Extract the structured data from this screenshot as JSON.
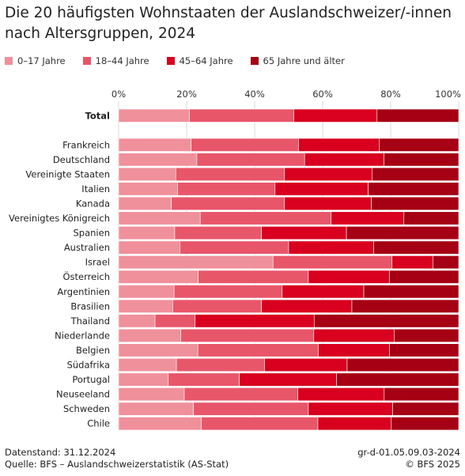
{
  "chart_data": {
    "type": "bar",
    "orientation": "horizontal",
    "stacked": "percent",
    "title": "Die 20 häufigsten Wohnstaaten der Auslandschweizer/-innen nach Altersgruppen, 2024",
    "xlim": [
      0,
      100
    ],
    "xticks": [
      "0%",
      "20%",
      "40%",
      "60%",
      "80%",
      "100%"
    ],
    "xtick_values": [
      0,
      20,
      40,
      60,
      80,
      100
    ],
    "grid": true,
    "legend_position": "top",
    "categories": [
      "Total",
      "Frankreich",
      "Deutschland",
      "Vereinigte Staaten",
      "Italien",
      "Kanada",
      "Vereinigtes Königreich",
      "Spanien",
      "Australien",
      "Israel",
      "Österreich",
      "Argentinien",
      "Brasilien",
      "Thailand",
      "Niederlande",
      "Belgien",
      "Südafrika",
      "Portugal",
      "Neuseeland",
      "Schweden",
      "Chile"
    ],
    "series": [
      {
        "name": "0–17 Jahre",
        "color": "#f0909b",
        "values": [
          20.8,
          21.3,
          23.0,
          16.8,
          17.3,
          15.5,
          24.0,
          16.5,
          18.0,
          45.4,
          23.4,
          16.3,
          15.9,
          10.7,
          18.3,
          23.3,
          17.0,
          14.6,
          19.3,
          22.0,
          24.3
        ]
      },
      {
        "name": "18–44 Jahre",
        "color": "#e8566a",
        "values": [
          30.7,
          31.6,
          31.7,
          32.0,
          28.7,
          33.3,
          38.5,
          25.5,
          32.0,
          35.0,
          32.4,
          31.8,
          26.1,
          11.8,
          39.1,
          35.4,
          25.9,
          20.9,
          33.4,
          33.8,
          34.3
        ]
      },
      {
        "name": "45–64 Jahre",
        "color": "#d8001e",
        "values": [
          24.5,
          23.8,
          23.3,
          25.8,
          27.4,
          25.5,
          21.4,
          25.0,
          25.0,
          12.0,
          23.8,
          24.0,
          26.6,
          35.0,
          23.6,
          21.0,
          24.3,
          28.6,
          25.4,
          24.8,
          21.6
        ]
      },
      {
        "name": "65 Jahre und älter",
        "color": "#a50014",
        "values": [
          24.0,
          23.3,
          22.0,
          25.4,
          26.6,
          25.7,
          16.1,
          33.0,
          25.0,
          7.6,
          20.4,
          27.9,
          31.4,
          42.5,
          19.0,
          20.3,
          32.8,
          35.9,
          21.9,
          19.4,
          19.8
        ]
      }
    ]
  },
  "footer": {
    "datenstand": "Datenstand: 31.12.2024",
    "quelle": "Quelle: BFS – Auslandschweizerstatistik (AS-Stat)",
    "code": "gr-d-01.05.09.03-2024",
    "copyright": "© BFS 2025"
  }
}
